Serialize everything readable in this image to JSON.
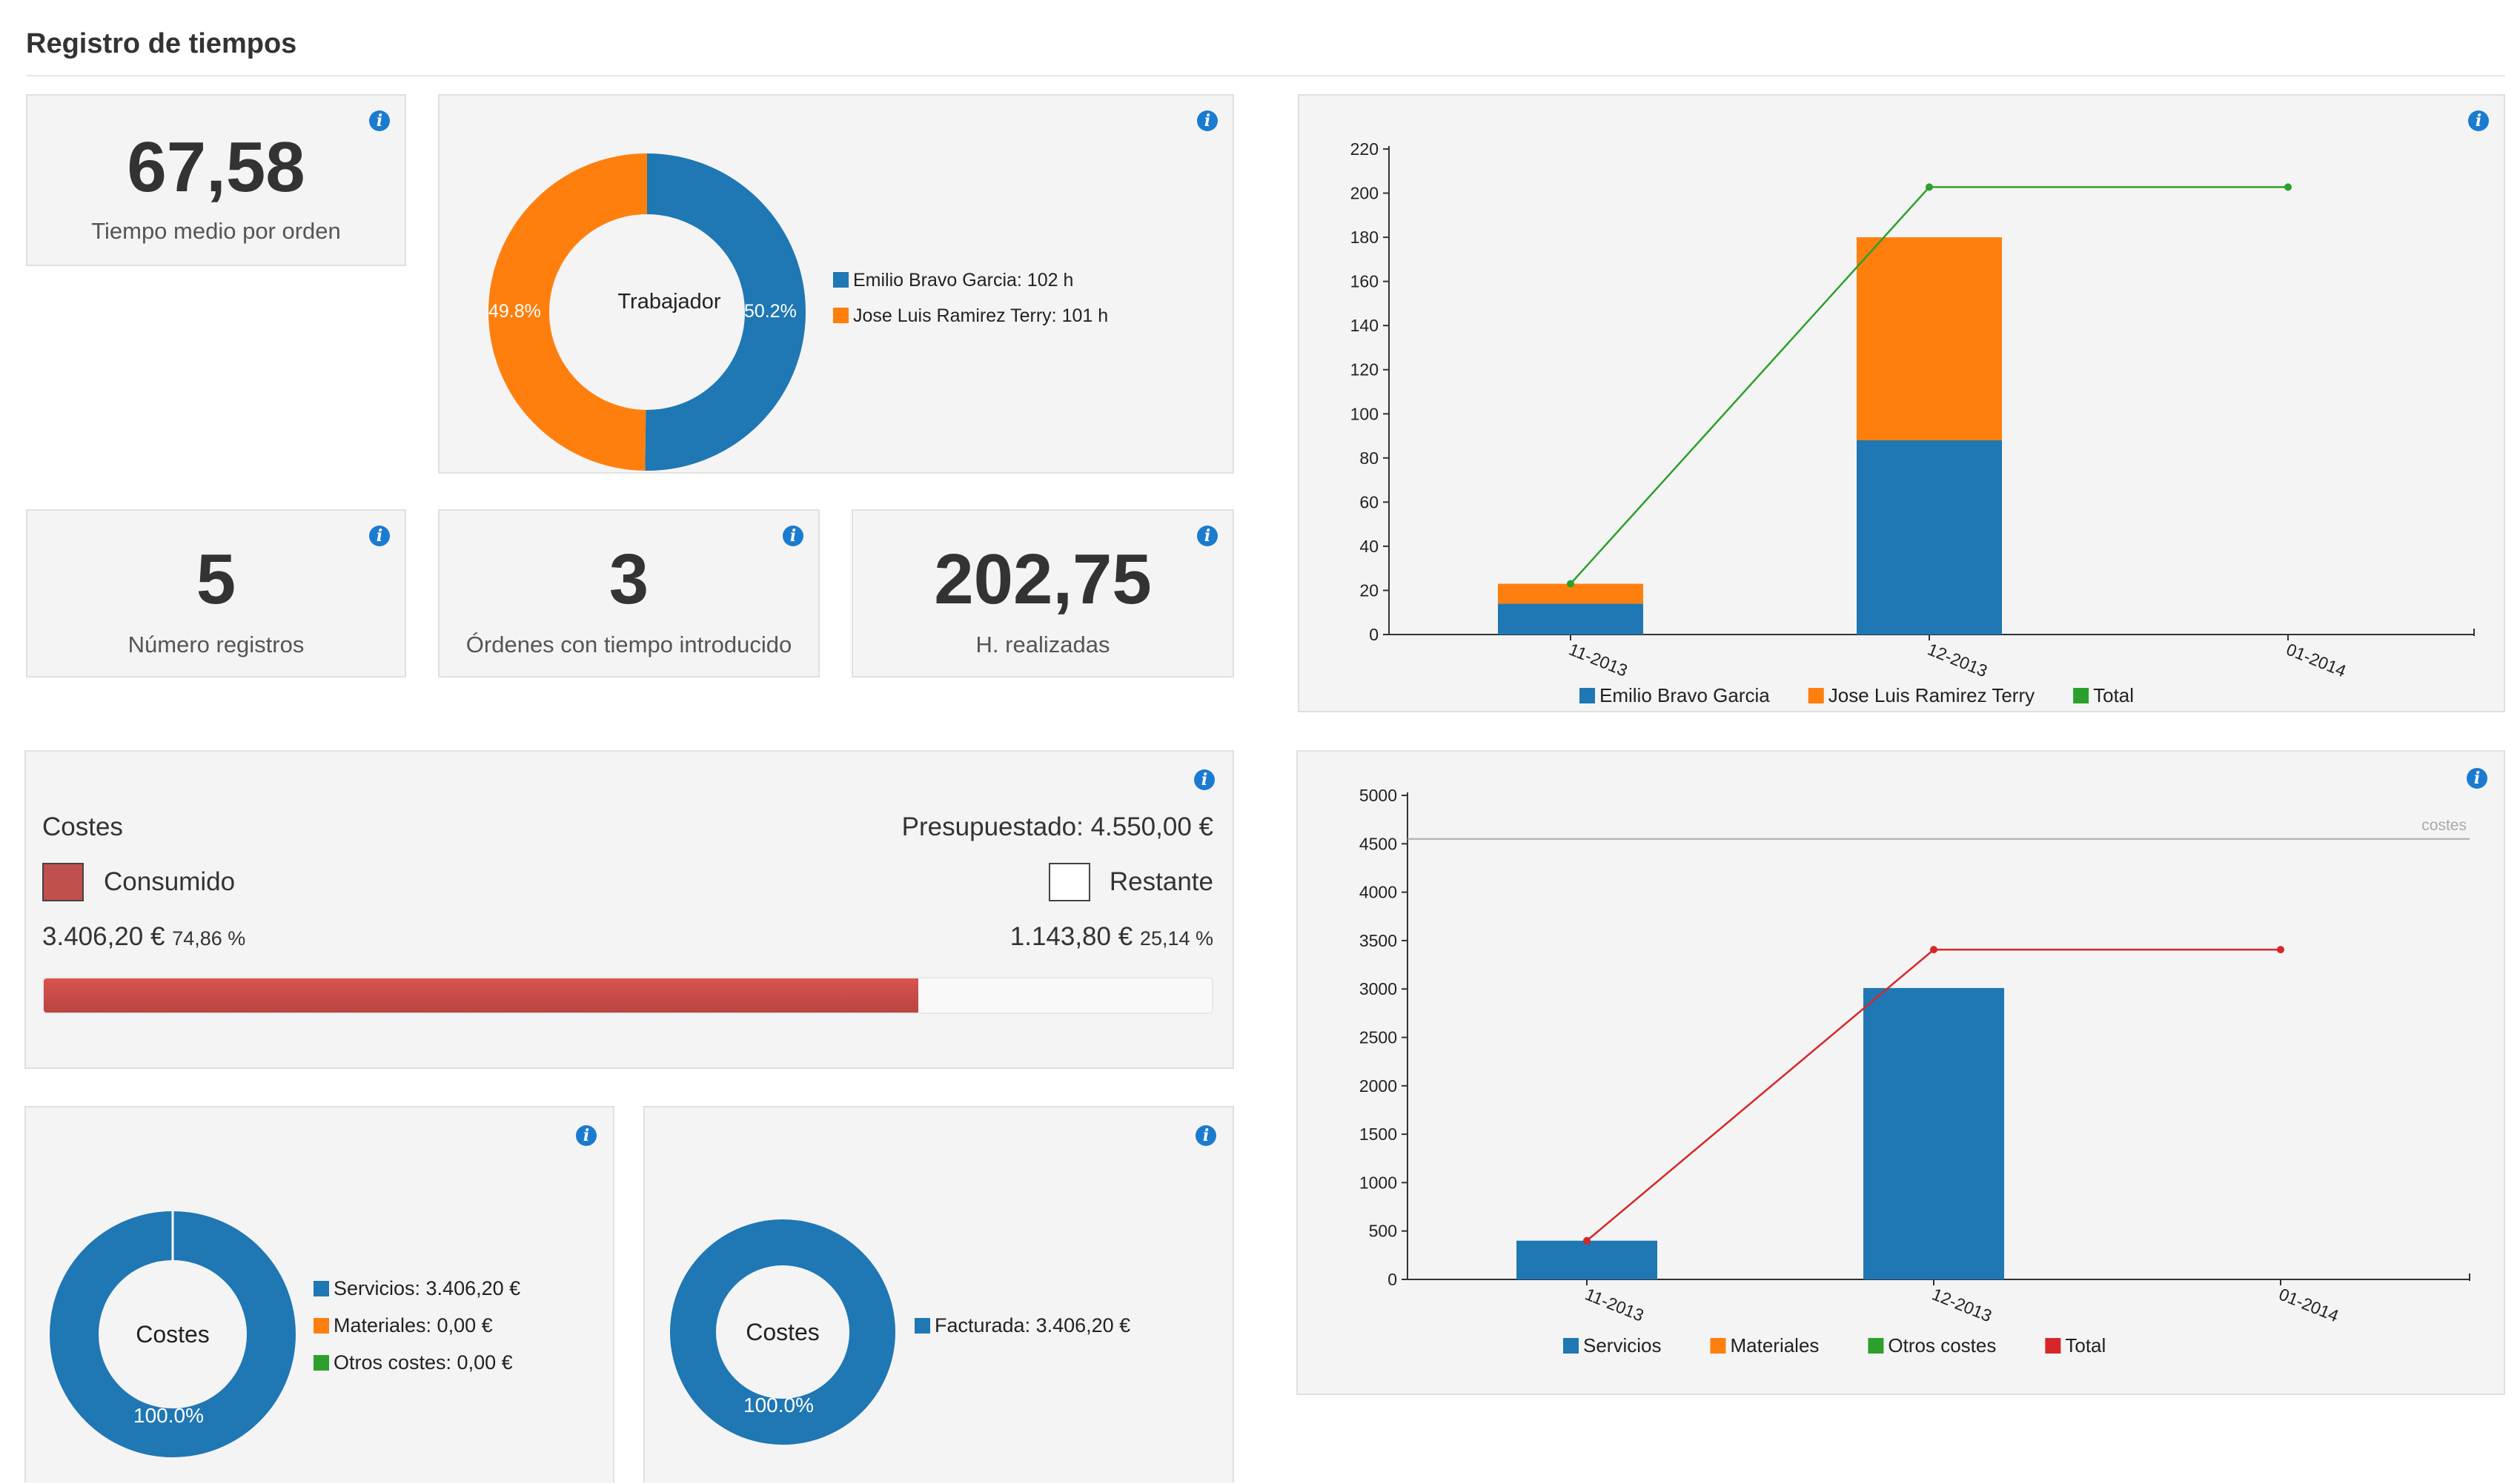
{
  "page": {
    "title": "Registro de tiempos"
  },
  "kpis": {
    "avg_time": {
      "value": "67,58",
      "label": "Tiempo medio por orden"
    },
    "num_records": {
      "value": "5",
      "label": "Número registros"
    },
    "orders_with_time": {
      "value": "3",
      "label": "Órdenes con tiempo introducido"
    },
    "hours_done": {
      "value": "202,75",
      "label": "H. realizadas"
    }
  },
  "worker_donut": {
    "center_label": "Trabajador",
    "slices": [
      {
        "label": "Emilio Bravo Garcia: 102 h",
        "value": 50.2,
        "pct_label": "50.2%",
        "color": "#1f77b4"
      },
      {
        "label": "Jose Luis Ramirez Terry: 101 h",
        "value": 49.8,
        "pct_label": "49.8%",
        "color": "#ff7f0e"
      }
    ]
  },
  "costs": {
    "title": "Costes",
    "budget": "Presupuestado: 4.550,00 €",
    "consumed_label": "Consumido",
    "remaining_label": "Restante",
    "consumed_amount": "3.406,20 €",
    "consumed_pct": "74,86 %",
    "remaining_amount": "1.143,80 €",
    "remaining_pct": "25,14 %",
    "progress": 0.7486,
    "consumed_color": "#c0504d"
  },
  "cost_type_donut": {
    "center_label": "Costes",
    "pct_label": "100.0%",
    "legend": [
      {
        "label": "Servicios: 3.406,20 €",
        "color": "#1f77b4"
      },
      {
        "label": "Materiales: 0,00 €",
        "color": "#ff7f0e"
      },
      {
        "label": "Otros costes: 0,00 €",
        "color": "#2ca02c"
      }
    ]
  },
  "billing_donut": {
    "center_label": "Costes",
    "pct_label": "100.0%",
    "legend": [
      {
        "label": "Facturada: 3.406,20 €",
        "color": "#1f77b4"
      }
    ]
  },
  "chart_data": [
    {
      "type": "bar",
      "stacked": true,
      "categories": [
        "11-2013",
        "12-2013",
        "01-2014"
      ],
      "series": [
        {
          "name": "Emilio Bravo Garcia",
          "values": [
            14,
            88,
            0
          ],
          "color": "#1f77b4"
        },
        {
          "name": "Jose Luis Ramirez Terry",
          "values": [
            9,
            92,
            0
          ],
          "color": "#ff7f0e"
        }
      ],
      "line": {
        "name": "Total",
        "values": [
          23,
          202.75,
          202.75
        ],
        "color": "#2ca02c"
      },
      "ylim": [
        0,
        220
      ],
      "yticks": [
        0,
        20,
        40,
        60,
        80,
        100,
        120,
        140,
        160,
        180,
        200,
        220
      ],
      "legend_position": "bottom"
    },
    {
      "type": "bar",
      "stacked": true,
      "categories": [
        "11-2013",
        "12-2013",
        "01-2014"
      ],
      "series": [
        {
          "name": "Servicios",
          "values": [
            400,
            3010,
            0
          ],
          "color": "#1f77b4"
        },
        {
          "name": "Materiales",
          "values": [
            0,
            0,
            0
          ],
          "color": "#ff7f0e"
        },
        {
          "name": "Otros costes",
          "values": [
            0,
            0,
            0
          ],
          "color": "#2ca02c"
        }
      ],
      "line": {
        "name": "Total",
        "values": [
          400,
          3406.2,
          3406.2
        ],
        "color": "#d62728"
      },
      "reference_line": {
        "label": "costes",
        "value": 4550
      },
      "ylim": [
        0,
        5000
      ],
      "yticks": [
        0,
        500,
        1000,
        1500,
        2000,
        2500,
        3000,
        3500,
        4000,
        4500,
        5000
      ],
      "legend_position": "bottom"
    }
  ]
}
